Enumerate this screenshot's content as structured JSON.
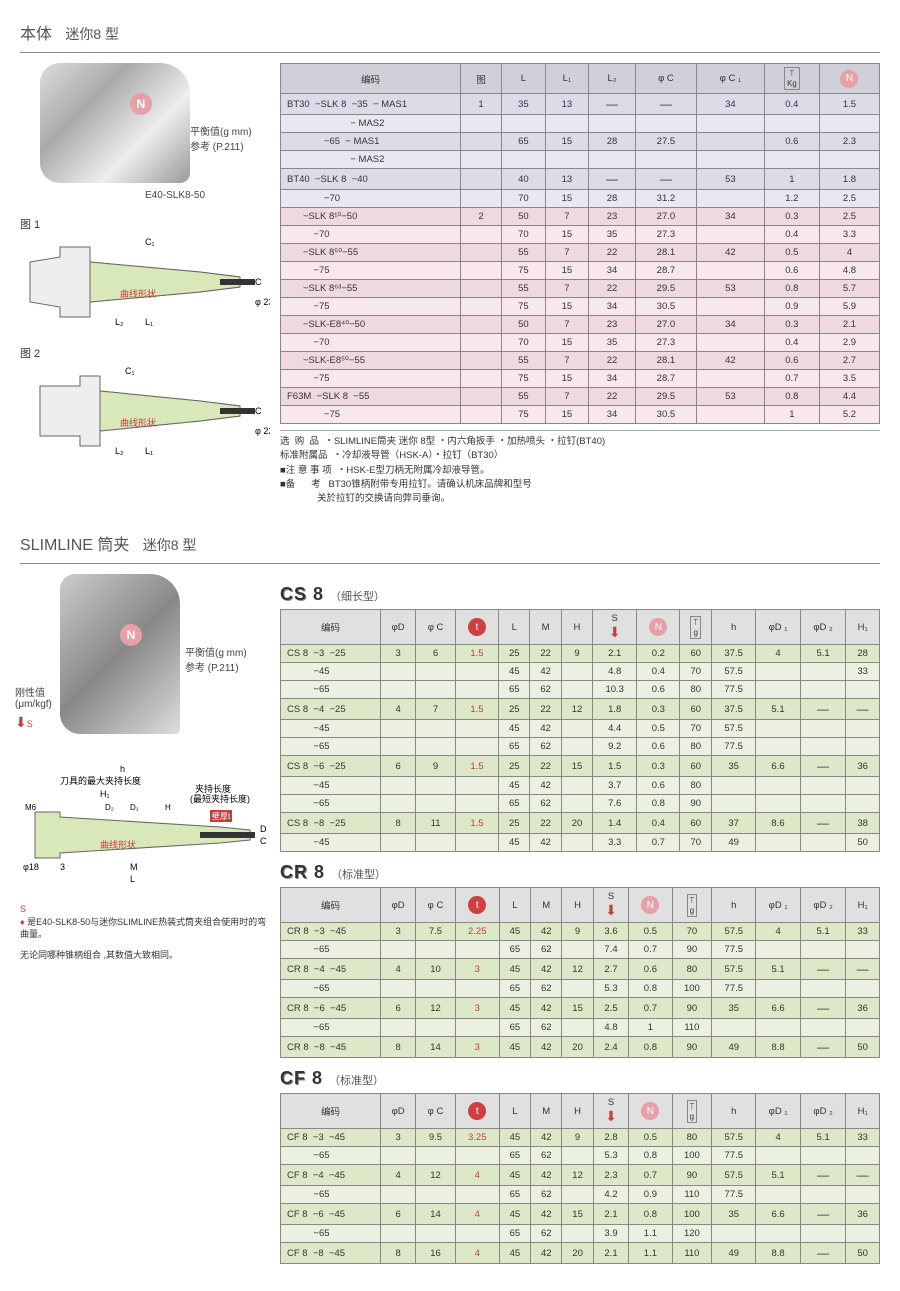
{
  "sec1": {
    "title_a": "本体",
    "title_b": "迷你8 型",
    "img_label": "E40-SLK8-50",
    "balance_text": "平衡值(g mm)",
    "ref_text": "参考 (P.211)",
    "fig1": "图 1",
    "fig2": "图 2",
    "curve": "曲线形状",
    "phi23": "φ 23",
    "dim_c": "C",
    "dim_c1": "C₁",
    "dim_l": "L",
    "dim_l1": "L₁",
    "dim_l2": "L₂"
  },
  "t1": {
    "hdr": [
      "编码",
      "图",
      "L",
      "L₁",
      "L₂",
      "φ C",
      "φ C ₁",
      "Kg",
      "N"
    ],
    "rows": [
      {
        "c": "r-blue",
        "cells": [
          "BT30  −SLK 8  −35  − MAS1",
          "1",
          "35",
          "13",
          "—",
          "—",
          "34",
          "0.4",
          "1.5"
        ]
      },
      {
        "c": "r-blue2",
        "cells": [
          "                        − MAS2",
          "",
          "",
          "",
          "",
          "",
          "",
          "",
          ""
        ]
      },
      {
        "c": "r-blue",
        "cells": [
          "              −65  − MAS1",
          "",
          "65",
          "15",
          "28",
          "27.5",
          "",
          "0.6",
          "2.3"
        ]
      },
      {
        "c": "r-blue2",
        "cells": [
          "                        − MAS2",
          "",
          "",
          "",
          "",
          "",
          "",
          "",
          ""
        ]
      },
      {
        "c": "r-blue",
        "cells": [
          "BT40  −SLK 8  −40",
          "",
          "40",
          "13",
          "—",
          "—",
          "53",
          "1",
          "1.8"
        ]
      },
      {
        "c": "r-blue2",
        "cells": [
          "              −70",
          "",
          "70",
          "15",
          "28",
          "31.2",
          "",
          "1.2",
          "2.5"
        ]
      },
      {
        "c": "r-pink",
        "cells": [
          "      −SLK 8¹⁰−50",
          "2",
          "50",
          "7",
          "23",
          "27.0",
          "34",
          "0.3",
          "2.5"
        ]
      },
      {
        "c": "r-pink2",
        "cells": [
          "          −70",
          "",
          "70",
          "15",
          "35",
          "27.3",
          "",
          "0.4",
          "3.3"
        ]
      },
      {
        "c": "r-pink",
        "cells": [
          "      −SLK 8⁵⁰−55",
          "",
          "55",
          "7",
          "22",
          "28.1",
          "42",
          "0.5",
          "4"
        ]
      },
      {
        "c": "r-pink2",
        "cells": [
          "          −75",
          "",
          "75",
          "15",
          "34",
          "28.7",
          "",
          "0.6",
          "4.8"
        ]
      },
      {
        "c": "r-pink",
        "cells": [
          "      −SLK 8⁶³−55",
          "",
          "55",
          "7",
          "22",
          "29.5",
          "53",
          "0.8",
          "5.7"
        ]
      },
      {
        "c": "r-pink2",
        "cells": [
          "          −75",
          "",
          "75",
          "15",
          "34",
          "30.5",
          "",
          "0.9",
          "5.9"
        ]
      },
      {
        "c": "r-pink",
        "cells": [
          "      −SLK-E8⁴⁰−50",
          "",
          "50",
          "7",
          "23",
          "27.0",
          "34",
          "0.3",
          "2.1"
        ]
      },
      {
        "c": "r-pink2",
        "cells": [
          "          −70",
          "",
          "70",
          "15",
          "35",
          "27.3",
          "",
          "0.4",
          "2.9"
        ]
      },
      {
        "c": "r-pink",
        "cells": [
          "      −SLK-E8⁵⁰−55",
          "",
          "55",
          "7",
          "22",
          "28.1",
          "42",
          "0.6",
          "2.7"
        ]
      },
      {
        "c": "r-pink2",
        "cells": [
          "          −75",
          "",
          "75",
          "15",
          "34",
          "28.7",
          "",
          "0.7",
          "3.5"
        ]
      },
      {
        "c": "r-pink",
        "cells": [
          "F63M  −SLK 8  −55",
          "",
          "55",
          "7",
          "22",
          "29.5",
          "53",
          "0.8",
          "4.4"
        ]
      },
      {
        "c": "r-pink2",
        "cells": [
          "              −75",
          "",
          "75",
          "15",
          "34",
          "30.5",
          "",
          "1",
          "5.2"
        ]
      }
    ],
    "notes": [
      "选  购  品  ・SLIMLINE筒夹 迷你 8型 ・内六角扳手 ・加热喷头 ・拉钉(BT40)",
      "标准附属品  ・冷却液导管（HSK-A）・拉钉（BT30）",
      "■注 意 事 项  ・HSK-E型刀柄无附属冷却液导管。",
      "■备      考   BT30锥柄附带专用拉钉。请确认机床品牌和型号",
      "              关於拉钉的交换请向弊司垂询。"
    ]
  },
  "sec2": {
    "title_a": "SLIMLINE 筒夹",
    "title_b": "迷你8 型",
    "balance_text": "平衡值(g mm)",
    "ref_text": "参考 (P.211)",
    "rigid_label": "刚性值",
    "rigid_unit": "(μm/kgf)",
    "h_label": "h",
    "tool_len": "刀具的最大夹持长度",
    "clamp_len": "夹持长度",
    "clamp_sub": "(最短夹持长度)",
    "wall": "壁厚t",
    "curve": "曲线形状",
    "m6": "M6",
    "phi18": "φ18",
    "d1": "D₁",
    "d2": "D₂",
    "h1": "H₁",
    "H": "H",
    "M": "M",
    "L": "L",
    "D": "D",
    "C": "C",
    "num3": "3",
    "note1": "是E40-SLK8-50与迷你SLIMLINE热装式筒夹组合使用时的弯曲量。",
    "note2": "无论同哪种锥柄组合 ,其数值大致相同。",
    "S": "S"
  },
  "cs8": {
    "name_big": "CS",
    "name_num": "8",
    "paren": "（细长型）",
    "hdr": [
      "编码",
      "φD",
      "φ C",
      "t",
      "L",
      "M",
      "H",
      "S",
      "N",
      "g",
      "h",
      "φD ₁",
      "φD ₂",
      "H₁"
    ],
    "rows": [
      {
        "c": "r-green",
        "cells": [
          "CS 8  −3  −25",
          "3",
          "6",
          "1.5",
          "25",
          "22",
          "9",
          "2.1",
          "0.2",
          "60",
          "37.5",
          "4",
          "5.1",
          "28"
        ]
      },
      {
        "c": "r-green2",
        "cells": [
          "          −45",
          "",
          "",
          "",
          "45",
          "42",
          "",
          "4.8",
          "0.4",
          "70",
          "57.5",
          "",
          "",
          "33"
        ]
      },
      {
        "c": "r-green2",
        "cells": [
          "          −65",
          "",
          "",
          "",
          "65",
          "62",
          "",
          "10.3",
          "0.6",
          "80",
          "77.5",
          "",
          "",
          ""
        ]
      },
      {
        "c": "r-green",
        "cells": [
          "CS 8  −4  −25",
          "4",
          "7",
          "1.5",
          "25",
          "22",
          "12",
          "1.8",
          "0.3",
          "60",
          "37.5",
          "5.1",
          "—",
          "—"
        ]
      },
      {
        "c": "r-green2",
        "cells": [
          "          −45",
          "",
          "",
          "",
          "45",
          "42",
          "",
          "4.4",
          "0.5",
          "70",
          "57.5",
          "",
          "",
          ""
        ]
      },
      {
        "c": "r-green2",
        "cells": [
          "          −65",
          "",
          "",
          "",
          "65",
          "62",
          "",
          "9.2",
          "0.6",
          "80",
          "77.5",
          "",
          "",
          ""
        ]
      },
      {
        "c": "r-green",
        "cells": [
          "CS 8  −6  −25",
          "6",
          "9",
          "1.5",
          "25",
          "22",
          "15",
          "1.5",
          "0.3",
          "60",
          "35",
          "6.6",
          "—",
          "36"
        ]
      },
      {
        "c": "r-green2",
        "cells": [
          "          −45",
          "",
          "",
          "",
          "45",
          "42",
          "",
          "3.7",
          "0.6",
          "80",
          "",
          "",
          "",
          ""
        ]
      },
      {
        "c": "r-green2",
        "cells": [
          "          −65",
          "",
          "",
          "",
          "65",
          "62",
          "",
          "7.6",
          "0.8",
          "90",
          "",
          "",
          "",
          ""
        ]
      },
      {
        "c": "r-green",
        "cells": [
          "CS 8  −8  −25",
          "8",
          "11",
          "1.5",
          "25",
          "22",
          "20",
          "1.4",
          "0.4",
          "60",
          "37",
          "8.6",
          "—",
          "38"
        ]
      },
      {
        "c": "r-green2",
        "cells": [
          "          −45",
          "",
          "",
          "",
          "45",
          "42",
          "",
          "3.3",
          "0.7",
          "70",
          "49",
          "",
          "",
          "50"
        ]
      }
    ]
  },
  "cr8": {
    "name_big": "CR",
    "name_num": "8",
    "paren": "（标准型）",
    "hdr": [
      "编码",
      "φD",
      "φ C",
      "t",
      "L",
      "M",
      "H",
      "S",
      "N",
      "g",
      "h",
      "φD ₁",
      "φD ₂",
      "H₁"
    ],
    "rows": [
      {
        "c": "r-green",
        "cells": [
          "CR 8  −3  −45",
          "3",
          "7.5",
          "2.25",
          "45",
          "42",
          "9",
          "3.6",
          "0.5",
          "70",
          "57.5",
          "4",
          "5.1",
          "33"
        ]
      },
      {
        "c": "r-green2",
        "cells": [
          "          −65",
          "",
          "",
          "",
          "65",
          "62",
          "",
          "7.4",
          "0.7",
          "90",
          "77.5",
          "",
          "",
          ""
        ]
      },
      {
        "c": "r-green",
        "cells": [
          "CR 8  −4  −45",
          "4",
          "10",
          "3",
          "45",
          "42",
          "12",
          "2.7",
          "0.6",
          "80",
          "57.5",
          "5.1",
          "—",
          "—"
        ]
      },
      {
        "c": "r-green2",
        "cells": [
          "          −65",
          "",
          "",
          "",
          "65",
          "62",
          "",
          "5.3",
          "0.8",
          "100",
          "77.5",
          "",
          "",
          ""
        ]
      },
      {
        "c": "r-green",
        "cells": [
          "CR 8  −6  −45",
          "6",
          "12",
          "3",
          "45",
          "42",
          "15",
          "2.5",
          "0.7",
          "90",
          "35",
          "6.6",
          "—",
          "36"
        ]
      },
      {
        "c": "r-green2",
        "cells": [
          "          −65",
          "",
          "",
          "",
          "65",
          "62",
          "",
          "4.8",
          "1",
          "110",
          "",
          "",
          "",
          ""
        ]
      },
      {
        "c": "r-green",
        "cells": [
          "CR 8  −8  −45",
          "8",
          "14",
          "3",
          "45",
          "42",
          "20",
          "2.4",
          "0.8",
          "90",
          "49",
          "8.8",
          "—",
          "50"
        ]
      }
    ]
  },
  "cf8": {
    "name_big": "CF",
    "name_num": "8",
    "paren": "（标准型）",
    "hdr": [
      "编码",
      "φD",
      "φ C",
      "t",
      "L",
      "M",
      "H",
      "S",
      "N",
      "g",
      "h",
      "φD ₁",
      "φD ₂",
      "H₁"
    ],
    "rows": [
      {
        "c": "r-green",
        "cells": [
          "CF 8  −3  −45",
          "3",
          "9.5",
          "3.25",
          "45",
          "42",
          "9",
          "2.8",
          "0.5",
          "80",
          "57.5",
          "4",
          "5.1",
          "33"
        ]
      },
      {
        "c": "r-green2",
        "cells": [
          "          −65",
          "",
          "",
          "",
          "65",
          "62",
          "",
          "5.3",
          "0.8",
          "100",
          "77.5",
          "",
          "",
          ""
        ]
      },
      {
        "c": "r-green",
        "cells": [
          "CF 8  −4  −45",
          "4",
          "12",
          "4",
          "45",
          "42",
          "12",
          "2.3",
          "0.7",
          "90",
          "57.5",
          "5.1",
          "—",
          "—"
        ]
      },
      {
        "c": "r-green2",
        "cells": [
          "          −65",
          "",
          "",
          "",
          "65",
          "62",
          "",
          "4.2",
          "0.9",
          "110",
          "77.5",
          "",
          "",
          ""
        ]
      },
      {
        "c": "r-green",
        "cells": [
          "CF 8  −6  −45",
          "6",
          "14",
          "4",
          "45",
          "42",
          "15",
          "2.1",
          "0.8",
          "100",
          "35",
          "6.6",
          "—",
          "36"
        ]
      },
      {
        "c": "r-green2",
        "cells": [
          "          −65",
          "",
          "",
          "",
          "65",
          "62",
          "",
          "3.9",
          "1.1",
          "120",
          "",
          "",
          "",
          ""
        ]
      },
      {
        "c": "r-green",
        "cells": [
          "CF 8  −8  −45",
          "8",
          "16",
          "4",
          "45",
          "42",
          "20",
          "2.1",
          "1.1",
          "110",
          "49",
          "8.8",
          "—",
          "50"
        ]
      }
    ]
  },
  "icons": {
    "N": "N",
    "t": "t",
    "S": "S"
  }
}
